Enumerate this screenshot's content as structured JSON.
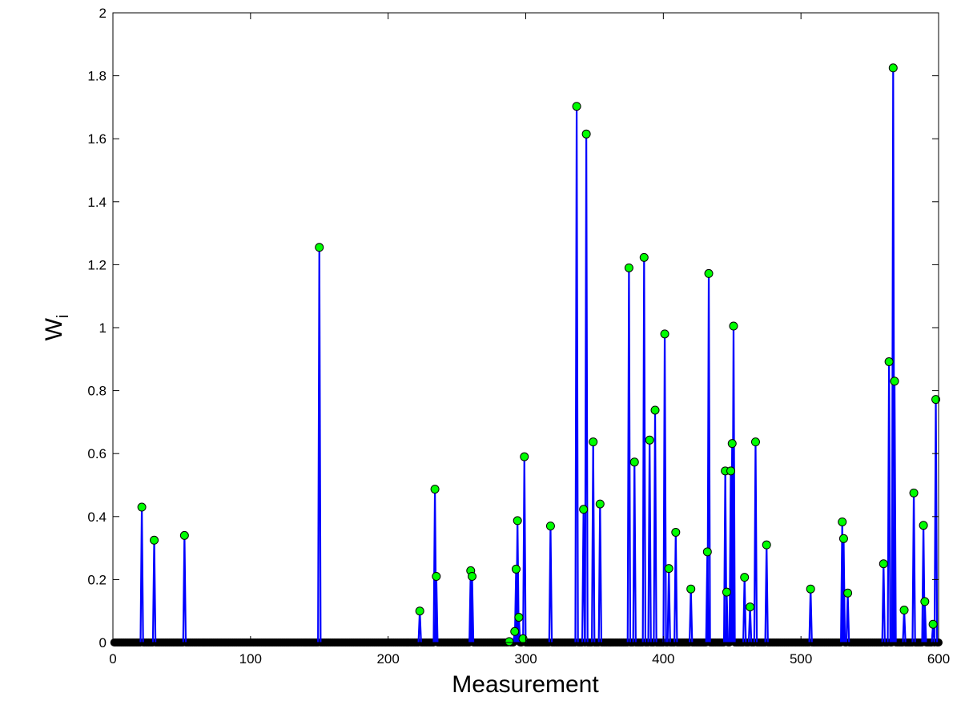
{
  "chart_data": {
    "type": "stem",
    "title": "",
    "xlabel": "Measurement",
    "ylabel": "W",
    "ylabel_subscript": "i",
    "xlim": [
      0,
      600
    ],
    "ylim": [
      0,
      2
    ],
    "xticks": [
      0,
      100,
      200,
      300,
      400,
      500,
      600
    ],
    "yticks": [
      0,
      0.2,
      0.4,
      0.6,
      0.8,
      1,
      1.2,
      1.4,
      1.6,
      1.8,
      2
    ],
    "ytick_labels": [
      "0",
      "0.2",
      "0.4",
      "0.6",
      "0.8",
      "1",
      "1.2",
      "1.4",
      "1.6",
      "1.8",
      "2"
    ],
    "grid": false,
    "n_measurements": 600,
    "series": [
      {
        "values": [
          {
            "x": 21,
            "y": 0.43
          },
          {
            "x": 30,
            "y": 0.325
          },
          {
            "x": 52,
            "y": 0.34
          },
          {
            "x": 150,
            "y": 1.255
          },
          {
            "x": 223,
            "y": 0.1
          },
          {
            "x": 234,
            "y": 0.487
          },
          {
            "x": 235,
            "y": 0.21
          },
          {
            "x": 260,
            "y": 0.228
          },
          {
            "x": 261,
            "y": 0.21
          },
          {
            "x": 288,
            "y": 0.003
          },
          {
            "x": 292,
            "y": 0.035
          },
          {
            "x": 293,
            "y": 0.233
          },
          {
            "x": 294,
            "y": 0.387
          },
          {
            "x": 295,
            "y": 0.08
          },
          {
            "x": 298,
            "y": 0.012
          },
          {
            "x": 299,
            "y": 0.59
          },
          {
            "x": 318,
            "y": 0.37
          },
          {
            "x": 337,
            "y": 1.703
          },
          {
            "x": 342,
            "y": 0.423
          },
          {
            "x": 344,
            "y": 1.615
          },
          {
            "x": 349,
            "y": 0.637
          },
          {
            "x": 354,
            "y": 0.44
          },
          {
            "x": 375,
            "y": 1.19
          },
          {
            "x": 379,
            "y": 0.573
          },
          {
            "x": 386,
            "y": 1.223
          },
          {
            "x": 390,
            "y": 0.643
          },
          {
            "x": 394,
            "y": 0.738
          },
          {
            "x": 401,
            "y": 0.98
          },
          {
            "x": 404,
            "y": 0.235
          },
          {
            "x": 409,
            "y": 0.35
          },
          {
            "x": 420,
            "y": 0.17
          },
          {
            "x": 432,
            "y": 0.288
          },
          {
            "x": 433,
            "y": 1.172
          },
          {
            "x": 445,
            "y": 0.545
          },
          {
            "x": 446,
            "y": 0.16
          },
          {
            "x": 449,
            "y": 0.545
          },
          {
            "x": 450,
            "y": 0.632
          },
          {
            "x": 451,
            "y": 1.005
          },
          {
            "x": 459,
            "y": 0.207
          },
          {
            "x": 463,
            "y": 0.113
          },
          {
            "x": 467,
            "y": 0.637
          },
          {
            "x": 475,
            "y": 0.31
          },
          {
            "x": 507,
            "y": 0.17
          },
          {
            "x": 530,
            "y": 0.383
          },
          {
            "x": 531,
            "y": 0.33
          },
          {
            "x": 534,
            "y": 0.157
          },
          {
            "x": 560,
            "y": 0.25
          },
          {
            "x": 564,
            "y": 0.892
          },
          {
            "x": 567,
            "y": 1.825
          },
          {
            "x": 568,
            "y": 0.83
          },
          {
            "x": 575,
            "y": 0.103
          },
          {
            "x": 582,
            "y": 0.475
          },
          {
            "x": 589,
            "y": 0.372
          },
          {
            "x": 590,
            "y": 0.13
          },
          {
            "x": 596,
            "y": 0.058
          },
          {
            "x": 598,
            "y": 0.772
          }
        ]
      }
    ],
    "colors": {
      "stem": "#0000ff",
      "nonzero_marker_fill": "#00ff00",
      "zero_marker_fill": "#000000",
      "marker_edge": "#000000",
      "axes": "#000000",
      "background": "#ffffff"
    }
  }
}
